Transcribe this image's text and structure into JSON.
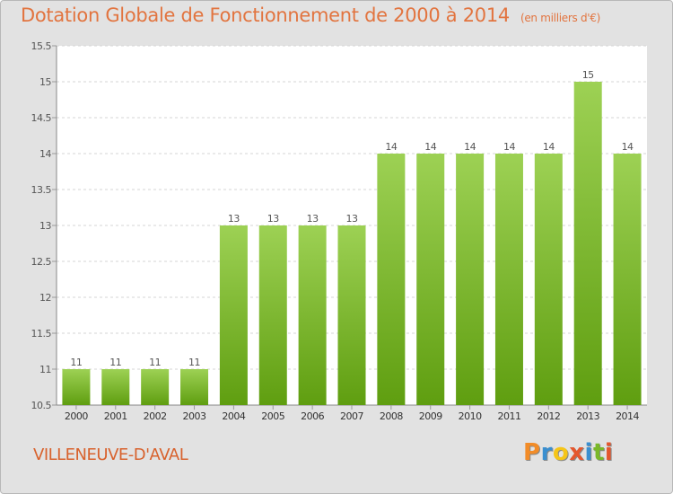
{
  "header": {
    "title": "Dotation Globale de Fonctionnement de 2000 à 2014",
    "subtitle": "(en milliers d'€)"
  },
  "footer": {
    "commune": "VILLENEUVE-D'AVAL",
    "logo": "Proxiti"
  },
  "colors": {
    "title": "#e2743f",
    "bar_top": "#9dd154",
    "bar_bottom": "#5f9e10",
    "plot_bg": "#ffffff",
    "frame_bg": "#e2e2e2",
    "grid": "#d6d6d6"
  },
  "chart_data": {
    "type": "bar",
    "title": "Dotation Globale de Fonctionnement de 2000 à 2014",
    "subtitle": "(en milliers d'€)",
    "xlabel": "",
    "ylabel": "",
    "categories": [
      "2000",
      "2001",
      "2002",
      "2003",
      "2004",
      "2005",
      "2006",
      "2007",
      "2008",
      "2009",
      "2010",
      "2011",
      "2012",
      "2013",
      "2014"
    ],
    "values": [
      11,
      11,
      11,
      11,
      13,
      13,
      13,
      13,
      14,
      14,
      14,
      14,
      14,
      15,
      14
    ],
    "data_labels": [
      "11",
      "11",
      "11",
      "11",
      "13",
      "13",
      "13",
      "13",
      "14",
      "14",
      "14",
      "14",
      "14",
      "15",
      "14"
    ],
    "ylim": [
      10.5,
      15.5
    ],
    "yticks": [
      10.5,
      11,
      11.5,
      12,
      12.5,
      13,
      13.5,
      14,
      14.5,
      15,
      15.5
    ],
    "ytick_labels": [
      "10.5",
      "11",
      "11.5",
      "12",
      "12.5",
      "13",
      "13.5",
      "14",
      "14.5",
      "15",
      "15.5"
    ],
    "grid": true,
    "legend": "none"
  }
}
